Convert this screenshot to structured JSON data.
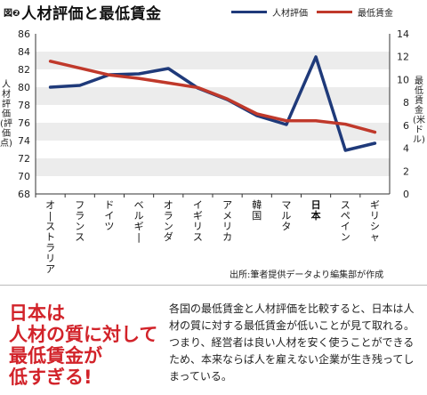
{
  "header": {
    "figure_no": "図❷",
    "title": "人材評価と最低賃金"
  },
  "chart_data": {
    "type": "line",
    "title": "人材評価と最低賃金",
    "categories": [
      "オーストラリア",
      "フランス",
      "ドイツ",
      "ベルギー",
      "オランダ",
      "イギリス",
      "アメリカ",
      "韓国",
      "マルタ",
      "日本",
      "スペイン",
      "ギリシャ"
    ],
    "highlight_category": "日本",
    "ylabel_left": "人材評価(評価点)",
    "ylabel_right": "最低賃金(米ドル)",
    "ylim_left": [
      68,
      86
    ],
    "yticks_left": [
      "68",
      "70",
      "72",
      "74",
      "76",
      "78",
      "80",
      "82",
      "84",
      "86"
    ],
    "ylim_right": [
      0,
      14
    ],
    "yticks_right": [
      "0",
      "2",
      "4",
      "6",
      "8",
      "10",
      "12",
      "14"
    ],
    "series": [
      {
        "name": "人材評価",
        "axis": "left",
        "color": "#1f3a7a",
        "values": [
          80.0,
          80.2,
          81.4,
          81.5,
          82.1,
          79.9,
          78.6,
          76.8,
          75.8,
          83.4,
          72.9,
          73.7
        ]
      },
      {
        "name": "最低賃金",
        "axis": "right",
        "color": "#c0392b",
        "values": [
          11.6,
          11.0,
          10.4,
          10.1,
          9.7,
          9.3,
          8.3,
          7.0,
          6.4,
          6.4,
          6.1,
          5.4
        ]
      }
    ],
    "legend": "top-right",
    "grid": true
  },
  "source": "出所:筆者提供データより編集部が作成",
  "headline": [
    "日本は",
    "人材の質に対して",
    "最低賃金が",
    "低すぎる!"
  ],
  "body": "各国の最低賃金と人材評価を比較すると、日本は人材の質に対する最低賃金が低いことが見て取れる。つまり、経営者は良い人材を安く使うことができるため、本来ならば人を雇えない企業が生き残ってしまっている。"
}
